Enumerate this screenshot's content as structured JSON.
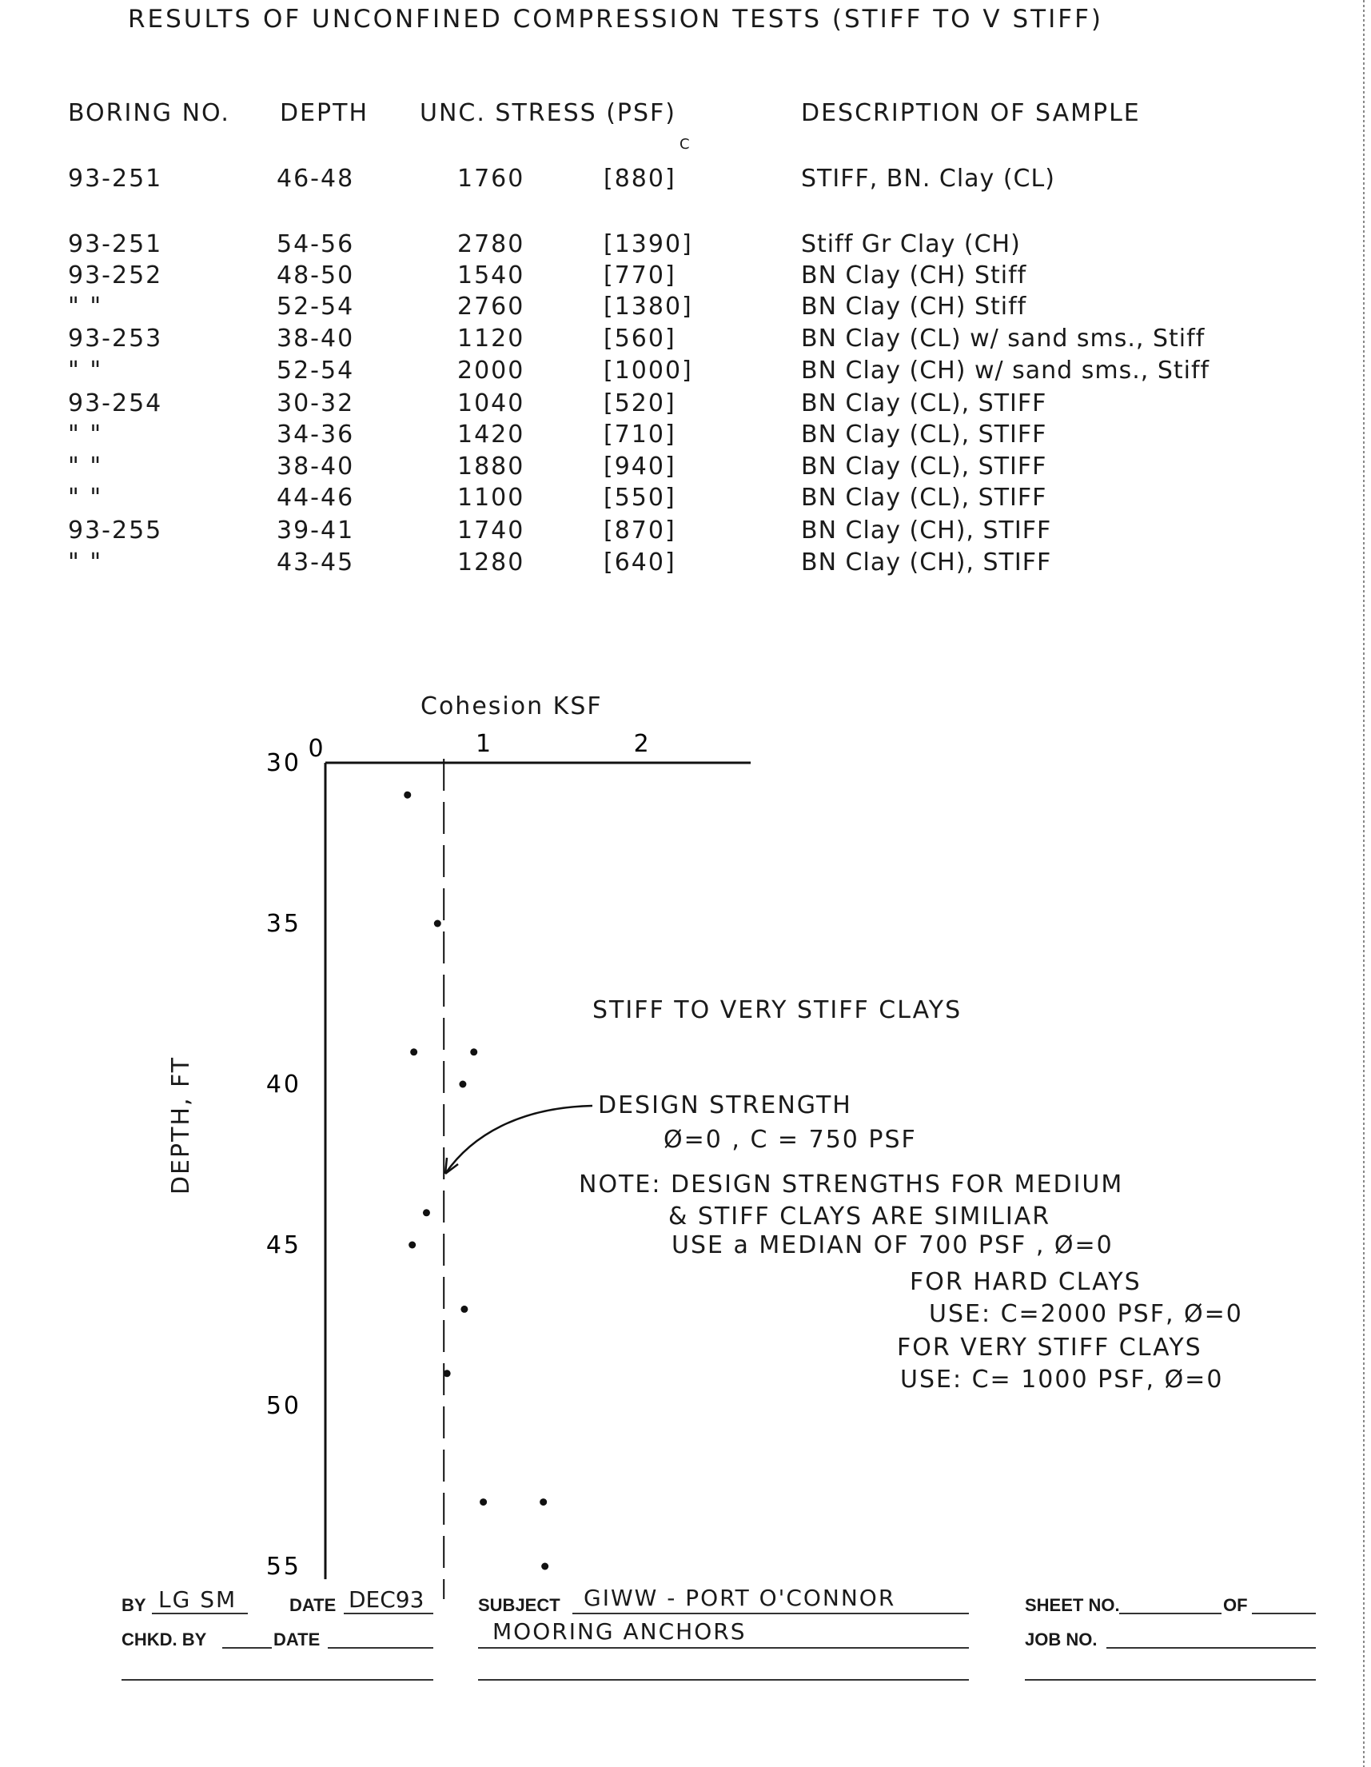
{
  "title": "RESULTS OF UNCONFINED COMPRESSION TESTS (STIFF TO V STIFF)",
  "table": {
    "headers": [
      "BORING NO.",
      "DEPTH",
      "UNC. STRESS (PSF)",
      "C",
      "DESCRIPTION OF SAMPLE"
    ],
    "rows": [
      [
        "93-251",
        "46-48",
        "1760",
        "[880]",
        "STIFF, BN. Clay (CL)"
      ],
      [
        "93-251",
        "54-56",
        "2780",
        "[1390]",
        "Stiff Gr Clay (CH)"
      ],
      [
        "93-252",
        "48-50",
        "1540",
        "[770]",
        "BN Clay (CH) Stiff"
      ],
      [
        "\"   \"",
        "52-54",
        "2760",
        "[1380]",
        "BN Clay (CH) Stiff"
      ],
      [
        "93-253",
        "38-40",
        "1120",
        "[560]",
        "BN Clay (CL) w/ sand sms., Stiff"
      ],
      [
        "\"   \"",
        "52-54",
        "2000",
        "[1000]",
        "BN Clay (CH) w/ sand sms., Stiff"
      ],
      [
        "93-254",
        "30-32",
        "1040",
        "[520]",
        "BN Clay (CL), STIFF"
      ],
      [
        "\"   \"",
        "34-36",
        "1420",
        "[710]",
        "BN Clay (CL), STIFF"
      ],
      [
        "\"   \"",
        "38-40",
        "1880",
        "[940]",
        "BN Clay (CL), STIFF"
      ],
      [
        "\"   \"",
        "44-46",
        "1100",
        "[550]",
        "BN Clay (CL), STIFF"
      ],
      [
        "93-255",
        "39-41",
        "1740",
        "[870]",
        "BN Clay (CH), STIFF"
      ],
      [
        "\"   \"",
        "43-45",
        "1280",
        "[640]",
        "BN Clay (CH), STIFF"
      ]
    ]
  },
  "chart_data": {
    "type": "scatter",
    "title": "Cohesion KSF",
    "xlabel": "Cohesion KSF",
    "ylabel": "DEPTH, FT",
    "x_ticks": [
      "0",
      "1",
      "2"
    ],
    "y_ticks": [
      "30",
      "35",
      "40",
      "45",
      "50",
      "55"
    ],
    "xlim": [
      0,
      2.7
    ],
    "ylim": [
      30,
      55
    ],
    "y_inverted": true,
    "points": [
      {
        "cohesion_ksf": 0.88,
        "depth_ft": 47
      },
      {
        "cohesion_ksf": 1.39,
        "depth_ft": 55
      },
      {
        "cohesion_ksf": 0.77,
        "depth_ft": 49
      },
      {
        "cohesion_ksf": 1.38,
        "depth_ft": 53
      },
      {
        "cohesion_ksf": 0.56,
        "depth_ft": 39
      },
      {
        "cohesion_ksf": 1.0,
        "depth_ft": 53
      },
      {
        "cohesion_ksf": 0.52,
        "depth_ft": 31
      },
      {
        "cohesion_ksf": 0.71,
        "depth_ft": 35
      },
      {
        "cohesion_ksf": 0.94,
        "depth_ft": 39
      },
      {
        "cohesion_ksf": 0.55,
        "depth_ft": 45
      },
      {
        "cohesion_ksf": 0.87,
        "depth_ft": 40
      },
      {
        "cohesion_ksf": 0.64,
        "depth_ft": 44
      }
    ],
    "design_line_ksf": 0.75,
    "annotations": {
      "region": "STIFF TO VERY STIFF CLAYS",
      "design_1": "DESIGN STRENGTH",
      "design_2": "Ø=0 ,  C = 750 PSF",
      "note_1": "NOTE: DESIGN STRENGTHS FOR MEDIUM",
      "note_2": "& STIFF CLAYS ARE SIMILIAR",
      "note_3": "USE a MEDIAN OF 700 PSF , Ø=0",
      "note_4": "FOR HARD CLAYS",
      "note_5": "USE:  C=2000 PSF, Ø=0",
      "note_6": "FOR VERY STIFF CLAYS",
      "note_7": "USE:  C= 1000 PSF, Ø=0"
    }
  },
  "footer": {
    "by_label": "BY",
    "by_value": "LG SM",
    "date_label": "DATE",
    "date_value": "DEC93",
    "subject_label": "SUBJECT",
    "subject_value": "GIWW - PORT O'CONNOR",
    "subject_value_2": "MOORING ANCHORS",
    "sheet_label": "SHEET NO.",
    "of_label": "OF",
    "chkd_label": "CHKD. BY",
    "date2_label": "DATE",
    "job_label": "JOB NO."
  }
}
